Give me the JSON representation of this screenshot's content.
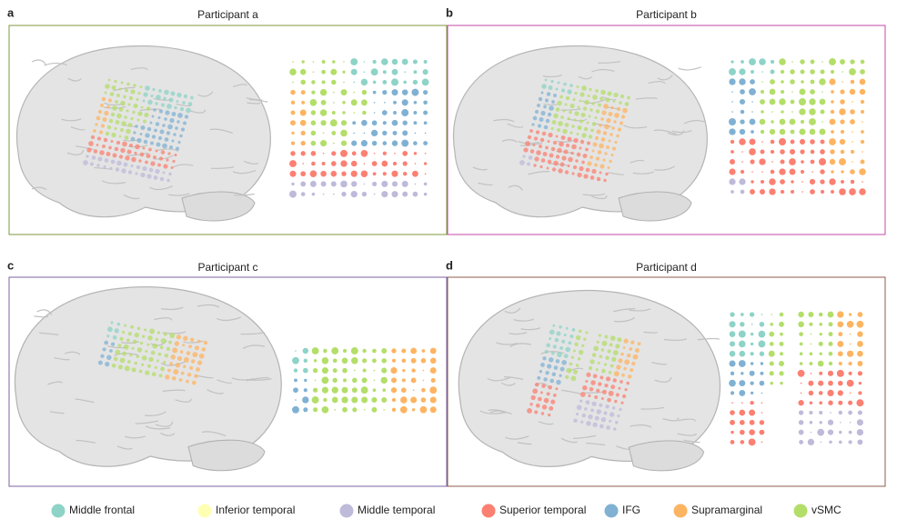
{
  "panels": [
    {
      "letter": "a",
      "title": "Participant a",
      "border": "#7d9a3c"
    },
    {
      "letter": "b",
      "title": "Participant b",
      "border": "#c24aa6"
    },
    {
      "letter": "c",
      "title": "Participant c",
      "border": "#7b63a3"
    },
    {
      "letter": "d",
      "title": "Participant d",
      "border": "#8c5c4e"
    }
  ],
  "legend": [
    {
      "label": "Middle frontal",
      "color": "#8dd3c7"
    },
    {
      "label": "Inferior temporal",
      "color": "#ffffb3"
    },
    {
      "label": "Middle temporal",
      "color": "#bebada"
    },
    {
      "label": "Superior temporal",
      "color": "#fb8072"
    },
    {
      "label": "IFG",
      "color": "#80b1d3"
    },
    {
      "label": "Supramarginal",
      "color": "#fdb462"
    },
    {
      "label": "vSMC",
      "color": "#b3de69"
    }
  ]
}
